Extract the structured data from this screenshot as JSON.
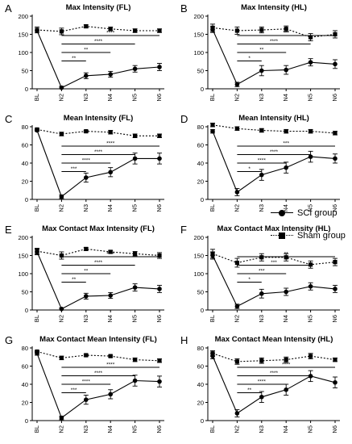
{
  "chart_data": [
    {
      "type": "line",
      "letter": "A",
      "title": "Max Intensity (FL)",
      "categories": [
        "BL",
        "N2",
        "N3",
        "N4",
        "N5",
        "N6"
      ],
      "ylim": [
        0,
        200
      ],
      "yticks": [
        0,
        50,
        100,
        150,
        200
      ],
      "series": [
        {
          "name": "SCI group",
          "values": [
            160,
            3,
            36,
            40,
            55,
            60
          ],
          "err": [
            0,
            4,
            8,
            8,
            9,
            10
          ]
        },
        {
          "name": "Sham group",
          "values": [
            162,
            158,
            172,
            165,
            160,
            160
          ],
          "err": [
            8,
            9,
            4,
            5,
            5,
            5
          ]
        }
      ],
      "significance": [
        {
          "from": "N2",
          "to": "N3",
          "label": "**"
        },
        {
          "from": "N2",
          "to": "N4",
          "label": "**"
        },
        {
          "from": "N2",
          "to": "N5",
          "label": "****"
        },
        {
          "from": "N2",
          "to": "N6",
          "label": "****"
        }
      ]
    },
    {
      "type": "line",
      "letter": "B",
      "title": "Max Intensity (HL)",
      "categories": [
        "BL",
        "N2",
        "N3",
        "N4",
        "N5",
        "N6"
      ],
      "ylim": [
        0,
        200
      ],
      "yticks": [
        0,
        50,
        100,
        150,
        200
      ],
      "series": [
        {
          "name": "SCI group",
          "values": [
            163,
            12,
            50,
            52,
            73,
            68
          ],
          "err": [
            8,
            6,
            14,
            12,
            10,
            12
          ]
        },
        {
          "name": "Sham group",
          "values": [
            168,
            160,
            162,
            165,
            142,
            150
          ],
          "err": [
            10,
            10,
            8,
            8,
            10,
            10
          ]
        }
      ],
      "significance": [
        {
          "from": "N2",
          "to": "N3",
          "label": "*"
        },
        {
          "from": "N2",
          "to": "N4",
          "label": "**"
        },
        {
          "from": "N2",
          "to": "N5",
          "label": "****"
        },
        {
          "from": "N2",
          "to": "N6",
          "label": "***"
        }
      ]
    },
    {
      "type": "line",
      "letter": "C",
      "title": "Mean Intensity (FL)",
      "categories": [
        "BL",
        "N2",
        "N3",
        "N4",
        "N5",
        "N6"
      ],
      "ylim": [
        0,
        80
      ],
      "yticks": [
        0,
        20,
        40,
        60,
        80
      ],
      "series": [
        {
          "name": "SCI group",
          "values": [
            76,
            3,
            24,
            30,
            45,
            45
          ],
          "err": [
            1,
            2,
            5,
            5,
            6,
            6
          ]
        },
        {
          "name": "Sham group",
          "values": [
            77,
            72,
            75,
            74,
            70,
            70
          ],
          "err": [
            1,
            2,
            1,
            2,
            2,
            2
          ]
        }
      ],
      "significance": [
        {
          "from": "N2",
          "to": "N3",
          "label": "***"
        },
        {
          "from": "N2",
          "to": "N4",
          "label": "****"
        },
        {
          "from": "N2",
          "to": "N5",
          "label": "****"
        },
        {
          "from": "N2",
          "to": "N6",
          "label": "****"
        }
      ]
    },
    {
      "type": "line",
      "letter": "D",
      "title": "Mean Intensity (HL)",
      "categories": [
        "BL",
        "N2",
        "N3",
        "N4",
        "N5",
        "N6"
      ],
      "ylim": [
        0,
        80
      ],
      "yticks": [
        0,
        20,
        40,
        60,
        80
      ],
      "series": [
        {
          "name": "SCI group",
          "values": [
            75,
            8,
            27,
            35,
            47,
            45
          ],
          "err": [
            2,
            4,
            6,
            6,
            6,
            5
          ]
        },
        {
          "name": "Sham group",
          "values": [
            82,
            78,
            76,
            75,
            75,
            73
          ],
          "err": [
            2,
            2,
            2,
            2,
            2,
            2
          ]
        }
      ],
      "significance": [
        {
          "from": "N2",
          "to": "N3",
          "label": "*"
        },
        {
          "from": "N2",
          "to": "N4",
          "label": "****"
        },
        {
          "from": "N2",
          "to": "N5",
          "label": "****"
        },
        {
          "from": "N2",
          "to": "N6",
          "label": "***"
        }
      ]
    },
    {
      "type": "line",
      "letter": "E",
      "title": "Max Contact Max Intensity (FL)",
      "categories": [
        "BL",
        "N2",
        "N3",
        "N4",
        "N5",
        "N6"
      ],
      "ylim": [
        0,
        200
      ],
      "yticks": [
        0,
        50,
        100,
        150,
        200
      ],
      "series": [
        {
          "name": "SCI group",
          "values": [
            160,
            3,
            38,
            40,
            62,
            58
          ],
          "err": [
            8,
            3,
            8,
            8,
            10,
            10
          ]
        },
        {
          "name": "Sham group",
          "values": [
            162,
            150,
            168,
            160,
            155,
            150
          ],
          "err": [
            8,
            10,
            4,
            4,
            6,
            8
          ]
        }
      ],
      "significance": [
        {
          "from": "N2",
          "to": "N3",
          "label": "**"
        },
        {
          "from": "N2",
          "to": "N4",
          "label": "**"
        },
        {
          "from": "N2",
          "to": "N5",
          "label": "****"
        },
        {
          "from": "N2",
          "to": "N6",
          "label": "****"
        }
      ]
    },
    {
      "type": "line",
      "letter": "F",
      "title": "Max Contact Max Intensity (HL)",
      "categories": [
        "BL",
        "N2",
        "N3",
        "N4",
        "N5",
        "N6"
      ],
      "ylim": [
        0,
        200
      ],
      "yticks": [
        0,
        50,
        100,
        150,
        200
      ],
      "series": [
        {
          "name": "SCI group",
          "values": [
            150,
            10,
            45,
            50,
            65,
            58
          ],
          "err": [
            10,
            6,
            12,
            10,
            10,
            10
          ]
        },
        {
          "name": "Sham group",
          "values": [
            155,
            130,
            145,
            145,
            125,
            132
          ],
          "err": [
            12,
            12,
            10,
            10,
            10,
            10
          ]
        }
      ],
      "significance": [
        {
          "from": "N2",
          "to": "N3",
          "label": "*"
        },
        {
          "from": "N2",
          "to": "N4",
          "label": "***"
        },
        {
          "from": "N2",
          "to": "N5",
          "label": "***"
        },
        {
          "from": "N2",
          "to": "N6",
          "label": "**"
        }
      ]
    },
    {
      "type": "line",
      "letter": "G",
      "title": "Max Contact Mean Intensity (FL)",
      "categories": [
        "BL",
        "N2",
        "N3",
        "N4",
        "N5",
        "N6"
      ],
      "ylim": [
        0,
        80
      ],
      "yticks": [
        0,
        20,
        40,
        60,
        80
      ],
      "series": [
        {
          "name": "SCI group",
          "values": [
            74,
            3,
            23,
            29,
            44,
            43
          ],
          "err": [
            2,
            2,
            5,
            5,
            6,
            6
          ]
        },
        {
          "name": "Sham group",
          "values": [
            76,
            69,
            72,
            71,
            67,
            66
          ],
          "err": [
            1,
            2,
            1,
            1,
            2,
            2
          ]
        }
      ],
      "significance": [
        {
          "from": "N2",
          "to": "N3",
          "label": "***"
        },
        {
          "from": "N2",
          "to": "N4",
          "label": "****"
        },
        {
          "from": "N2",
          "to": "N5",
          "label": "****"
        },
        {
          "from": "N2",
          "to": "N6",
          "label": "****"
        }
      ]
    },
    {
      "type": "line",
      "letter": "H",
      "title": "Max Contact Mean Intensity (HL)",
      "categories": [
        "BL",
        "N2",
        "N3",
        "N4",
        "N5",
        "N6"
      ],
      "ylim": [
        0,
        80
      ],
      "yticks": [
        0,
        20,
        40,
        60,
        80
      ],
      "series": [
        {
          "name": "SCI group",
          "values": [
            71,
            8,
            26,
            34,
            49,
            42
          ],
          "err": [
            3,
            4,
            6,
            6,
            6,
            6
          ]
        },
        {
          "name": "Sham group",
          "values": [
            74,
            65,
            66,
            67,
            71,
            67
          ],
          "err": [
            3,
            3,
            3,
            3,
            3,
            2
          ]
        }
      ],
      "significance": [
        {
          "from": "N2",
          "to": "N3",
          "label": "**"
        },
        {
          "from": "N2",
          "to": "N4",
          "label": "****"
        },
        {
          "from": "N2",
          "to": "N5",
          "label": "****"
        },
        {
          "from": "N2",
          "to": "N6",
          "label": "****"
        }
      ]
    }
  ],
  "legend": {
    "sci_label": "SCI group",
    "sham_label": "Sham group"
  }
}
